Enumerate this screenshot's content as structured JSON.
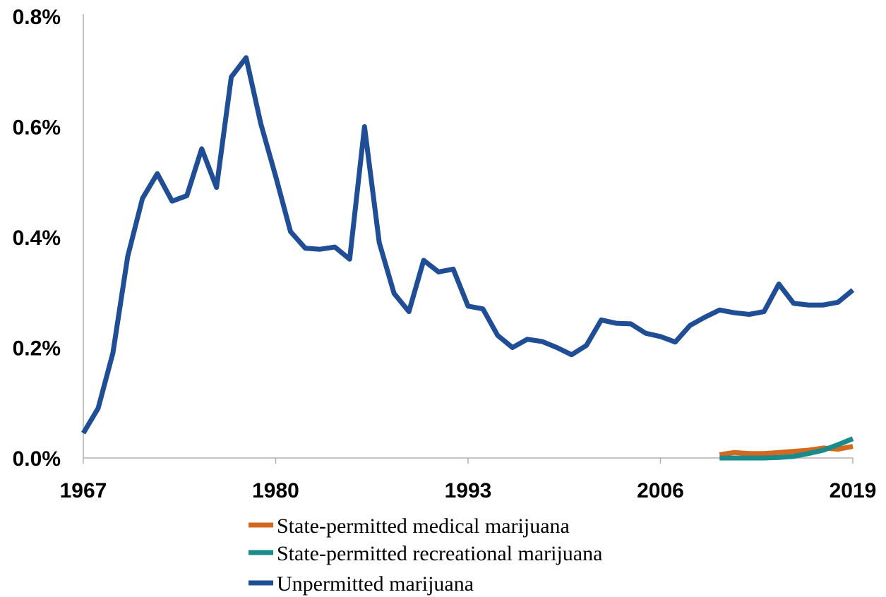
{
  "chart_data": {
    "type": "line",
    "title": "",
    "xlabel": "",
    "ylabel": "",
    "xlim": [
      1967,
      2019
    ],
    "ylim": [
      0,
      0.8
    ],
    "x_ticks": [
      1967,
      1980,
      1993,
      2006,
      2019
    ],
    "x_tick_labels": [
      "1967",
      "1980",
      "1993",
      "2006",
      "2019"
    ],
    "y_ticks": [
      0,
      0.2,
      0.4,
      0.6,
      0.8
    ],
    "y_tick_labels": [
      "0.0%",
      "0.2%",
      "0.4%",
      "0.6%",
      "0.8%"
    ],
    "grid": false,
    "legend_position": "bottom",
    "series": [
      {
        "name": "State-permitted medical marijuana",
        "color": "#D4691E",
        "x": [
          2010,
          2011,
          2012,
          2013,
          2014,
          2015,
          2016,
          2017,
          2018,
          2019
        ],
        "values": [
          0.006,
          0.01,
          0.008,
          0.008,
          0.01,
          0.012,
          0.014,
          0.018,
          0.016,
          0.021
        ]
      },
      {
        "name": "State-permitted recreational marijuana",
        "color": "#1A8A8A",
        "x": [
          2010,
          2011,
          2012,
          2013,
          2014,
          2015,
          2016,
          2017,
          2018,
          2019
        ],
        "values": [
          0.0,
          0.0,
          0.0,
          0.0,
          0.001,
          0.003,
          0.008,
          0.014,
          0.024,
          0.035
        ]
      },
      {
        "name": "Unpermitted marijuana",
        "color": "#1F4E96",
        "x": [
          1967,
          1968,
          1969,
          1970,
          1971,
          1972,
          1973,
          1974,
          1975,
          1976,
          1977,
          1978,
          1979,
          1980,
          1981,
          1982,
          1983,
          1984,
          1985,
          1986,
          1987,
          1988,
          1989,
          1990,
          1991,
          1992,
          1993,
          1994,
          1995,
          1996,
          1997,
          1998,
          1999,
          2000,
          2001,
          2002,
          2003,
          2004,
          2005,
          2006,
          2007,
          2008,
          2009,
          2010,
          2011,
          2012,
          2013,
          2014,
          2015,
          2016,
          2017,
          2018,
          2019
        ],
        "values": [
          0.045,
          0.09,
          0.19,
          0.365,
          0.47,
          0.515,
          0.465,
          0.475,
          0.56,
          0.49,
          0.69,
          0.725,
          0.605,
          0.51,
          0.41,
          0.38,
          0.378,
          0.382,
          0.36,
          0.6,
          0.39,
          0.298,
          0.265,
          0.358,
          0.337,
          0.342,
          0.275,
          0.27,
          0.222,
          0.2,
          0.215,
          0.211,
          0.2,
          0.187,
          0.204,
          0.25,
          0.244,
          0.243,
          0.226,
          0.22,
          0.21,
          0.24,
          0.255,
          0.268,
          0.263,
          0.26,
          0.265,
          0.315,
          0.28,
          0.277,
          0.277,
          0.282,
          0.304
        ]
      }
    ]
  }
}
